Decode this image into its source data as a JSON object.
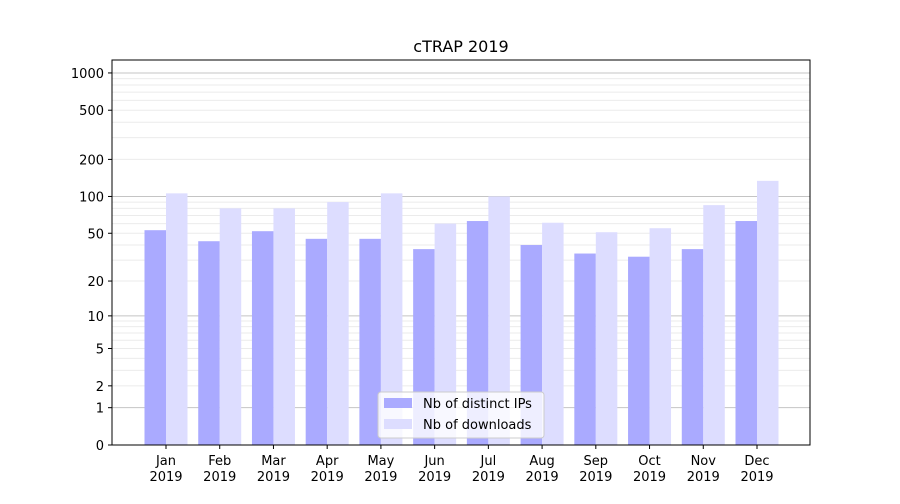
{
  "chart_data": {
    "type": "bar",
    "title": "cTRAP 2019",
    "xlabel": "",
    "ylabel": "",
    "yscale": "log(1+y)",
    "ylim": [
      0,
      1270
    ],
    "yticks": [
      0,
      1,
      2,
      5,
      10,
      20,
      50,
      100,
      200,
      500,
      1000
    ],
    "grid": true,
    "legend_position": "lower center",
    "categories": [
      "Jan\n2019",
      "Feb\n2019",
      "Mar\n2019",
      "Apr\n2019",
      "May\n2019",
      "Jun\n2019",
      "Jul\n2019",
      "Aug\n2019",
      "Sep\n2019",
      "Oct\n2019",
      "Nov\n2019",
      "Dec\n2019"
    ],
    "series": [
      {
        "name": "Nb of distinct IPs",
        "color": "#aaaaff",
        "values": [
          53,
          43,
          52,
          45,
          45,
          37,
          63,
          40,
          34,
          32,
          37,
          63
        ]
      },
      {
        "name": "Nb of downloads",
        "color": "#ddddff",
        "values": [
          106,
          80,
          80,
          90,
          106,
          60,
          100,
          61,
          51,
          55,
          85,
          134
        ]
      }
    ]
  }
}
